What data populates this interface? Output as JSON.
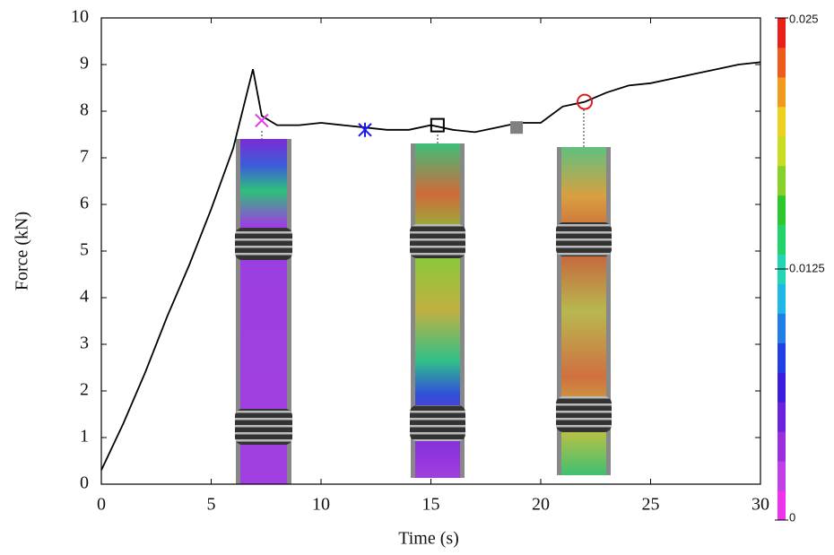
{
  "chart_data": {
    "type": "line",
    "xlabel": "Time (s)",
    "ylabel": "Force (kN)",
    "x": [
      0,
      1,
      2,
      3,
      4,
      5,
      6,
      6.9,
      7.3,
      8,
      9,
      10,
      11,
      12,
      13,
      14,
      15,
      16,
      17,
      18,
      19,
      20,
      21,
      22,
      23,
      24,
      25,
      26,
      27,
      28,
      29,
      30
    ],
    "series": [
      {
        "color": "#000000",
        "values": [
          0.3,
          1.3,
          2.4,
          3.6,
          4.7,
          5.9,
          7.2,
          8.9,
          7.9,
          7.7,
          7.7,
          7.75,
          7.7,
          7.65,
          7.6,
          7.6,
          7.7,
          7.6,
          7.55,
          7.65,
          7.75,
          7.75,
          8.1,
          8.2,
          8.4,
          8.55,
          8.6,
          8.7,
          8.8,
          8.9,
          9.0,
          9.05
        ]
      }
    ],
    "markers": [
      {
        "x": 7.3,
        "y": 7.8,
        "symbol": "x",
        "color": "#e43be4"
      },
      {
        "x": 12,
        "y": 7.6,
        "symbol": "star",
        "color": "#1a1ae6"
      },
      {
        "x": 15.3,
        "y": 7.7,
        "symbol": "open-square",
        "color": "#000000"
      },
      {
        "x": 18.9,
        "y": 7.65,
        "symbol": "filled-square",
        "color": "#808080"
      },
      {
        "x": 22,
        "y": 8.2,
        "symbol": "open-circle",
        "color": "#e41a1a"
      }
    ],
    "xlim": [
      0,
      30
    ],
    "xticks": [
      0,
      5,
      10,
      15,
      20,
      25,
      30
    ],
    "ylim": [
      0,
      10
    ],
    "yticks": [
      0,
      1,
      2,
      3,
      4,
      5,
      6,
      7,
      8,
      9,
      10
    ],
    "colorbar": {
      "lim": [
        0,
        0.025
      ],
      "ticks": [
        0,
        0.0125,
        0.025
      ],
      "colors": [
        "#ee33ee",
        "#c23ee8",
        "#9a2fe0",
        "#6b22dc",
        "#3a1ee0",
        "#2040e6",
        "#1f7fe6",
        "#1fb8e6",
        "#22d6b4",
        "#22d36a",
        "#2ec82e",
        "#86d22a",
        "#c8dc22",
        "#ecd21e",
        "#f29a1c",
        "#ee5a1a",
        "#e82018"
      ]
    }
  }
}
